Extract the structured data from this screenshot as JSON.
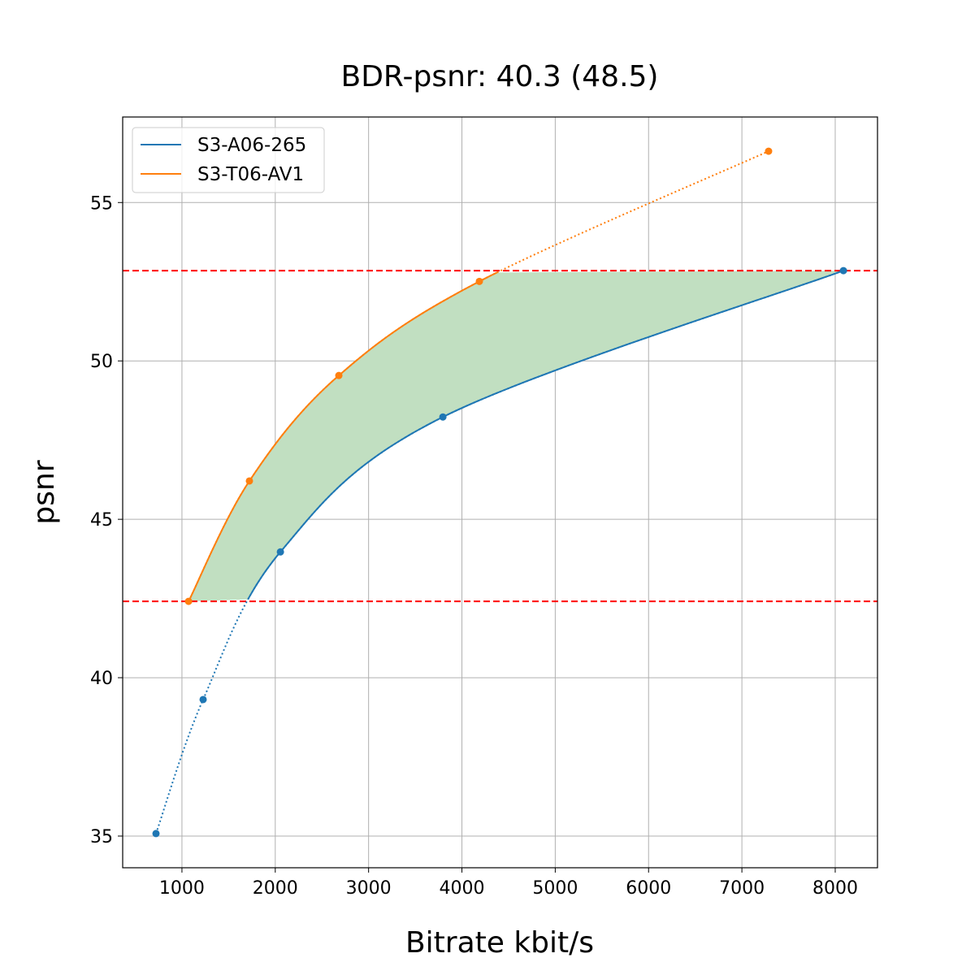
{
  "chart_data": {
    "type": "line",
    "title": "BDR-psnr: 40.3 (48.5)",
    "xlabel": "Bitrate kbit/s",
    "ylabel": "psnr",
    "xlim": [
      365,
      8453
    ],
    "ylim": [
      34.0,
      57.7
    ],
    "xticks": [
      1000,
      2000,
      3000,
      4000,
      5000,
      6000,
      7000,
      8000
    ],
    "yticks": [
      35,
      40,
      45,
      50,
      55
    ],
    "grid": true,
    "legend_position": "top-left",
    "series": [
      {
        "name": "S3-A06-265",
        "color": "#1f77b4",
        "x": [
          722,
          1227,
          2055,
          3796,
          8088
        ],
        "y": [
          35.08,
          39.31,
          43.97,
          48.23,
          52.85
        ]
      },
      {
        "name": "S3-T06-AV1",
        "color": "#ff7f0e",
        "x": [
          1071,
          1723,
          2681,
          4187,
          7286
        ],
        "y": [
          42.41,
          46.21,
          49.54,
          52.51,
          56.62
        ]
      }
    ],
    "reference_lines": {
      "y": [
        42.41,
        52.85
      ],
      "color": "#ff0000",
      "style": "dashed"
    },
    "fill_color": "#c1dfc1"
  }
}
